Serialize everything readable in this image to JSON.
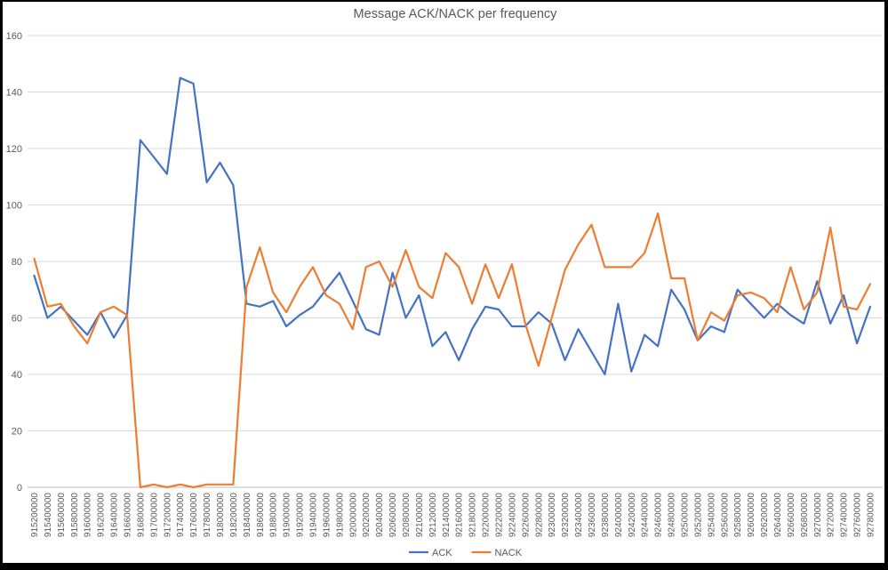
{
  "chart_data": {
    "type": "line",
    "title": "Message ACK/NACK per frequency",
    "xlabel": "",
    "ylabel": "",
    "ylim": [
      0,
      160
    ],
    "yticks": [
      0,
      20,
      40,
      60,
      80,
      100,
      120,
      140,
      160
    ],
    "grid": "horizontal",
    "grid_color": "#d9d9d9",
    "axis_color": "#bfbfbf",
    "text_color": "#595959",
    "legend_position": "bottom",
    "categories": [
      "915200000",
      "915400000",
      "915600000",
      "915800000",
      "916000000",
      "916200000",
      "916400000",
      "916600000",
      "916800000",
      "917000000",
      "917200000",
      "917400000",
      "917600000",
      "917800000",
      "918000000",
      "918200000",
      "918400000",
      "918600000",
      "918800000",
      "919000000",
      "919200000",
      "919400000",
      "919600000",
      "919800000",
      "920000000",
      "920200000",
      "920400000",
      "920600000",
      "920800000",
      "921000000",
      "921200000",
      "921400000",
      "921600000",
      "921800000",
      "922000000",
      "922200000",
      "922400000",
      "922600000",
      "922800000",
      "923000000",
      "923200000",
      "923400000",
      "923600000",
      "923800000",
      "924000000",
      "924200000",
      "924400000",
      "924600000",
      "924800000",
      "925000000",
      "925200000",
      "925400000",
      "925600000",
      "925800000",
      "926000000",
      "926200000",
      "926400000",
      "926600000",
      "926800000",
      "927000000",
      "927200000",
      "927400000",
      "927600000",
      "927800000"
    ],
    "series": [
      {
        "name": "ACK",
        "color": "#4472c4",
        "values": [
          75,
          60,
          64,
          59,
          54,
          62,
          53,
          61,
          123,
          117,
          111,
          145,
          143,
          108,
          115,
          107,
          65,
          64,
          66,
          57,
          61,
          64,
          70,
          76,
          66,
          56,
          54,
          76,
          60,
          68,
          50,
          55,
          45,
          56,
          64,
          63,
          57,
          57,
          62,
          58,
          45,
          56,
          48,
          40,
          65,
          41,
          54,
          50,
          70,
          63,
          52,
          57,
          55,
          70,
          65,
          60,
          65,
          61,
          58,
          73,
          58,
          68,
          51,
          64
        ]
      },
      {
        "name": "NACK",
        "color": "#ed7d31",
        "values": [
          81,
          64,
          65,
          57,
          51,
          62,
          64,
          61,
          0,
          1,
          0,
          1,
          0,
          1,
          1,
          1,
          71,
          85,
          69,
          62,
          71,
          78,
          68,
          65,
          56,
          78,
          80,
          71,
          84,
          71,
          67,
          83,
          78,
          65,
          79,
          67,
          79,
          58,
          43,
          60,
          77,
          86,
          93,
          78,
          78,
          78,
          83,
          97,
          74,
          74,
          52,
          62,
          59,
          68,
          69,
          67,
          62,
          78,
          63,
          69,
          92,
          64,
          63,
          72
        ]
      }
    ]
  }
}
